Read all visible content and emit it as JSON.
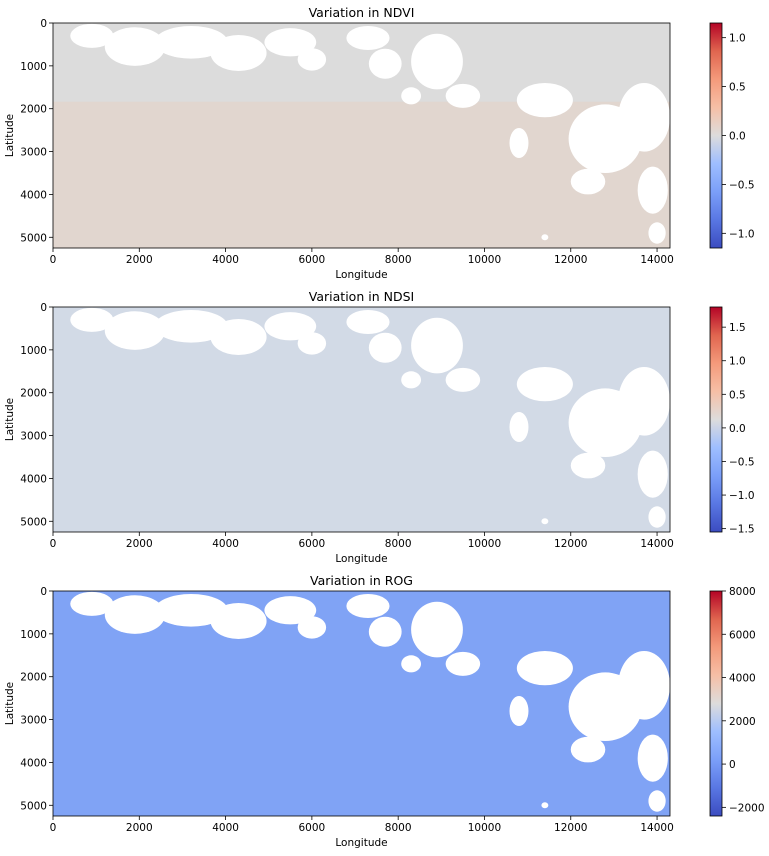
{
  "chart_data": [
    {
      "type": "heatmap",
      "title": "Variation in NDVI",
      "xlabel": "Longitude",
      "ylabel": "Latitude",
      "x_ticks": [
        0,
        2000,
        4000,
        6000,
        8000,
        10000,
        12000,
        14000
      ],
      "y_ticks": [
        0,
        1000,
        2000,
        3000,
        4000,
        5000
      ],
      "x_range": [
        0,
        14300
      ],
      "y_range": [
        0,
        5250
      ],
      "colorbar": {
        "colormap": "coolwarm",
        "range": [
          -1.15,
          1.15
        ],
        "ticks": [
          -1.0,
          -0.5,
          0.0,
          0.5,
          1.0
        ],
        "tick_labels": [
          "−1.0",
          "−0.5",
          "0.0",
          "0.5",
          "1.0"
        ]
      },
      "dominant_color": "#dcdcdc",
      "tint_color": "#e6d2c4",
      "masked_color": "#ffffff"
    },
    {
      "type": "heatmap",
      "title": "Variation in NDSI",
      "xlabel": "Longitude",
      "ylabel": "Latitude",
      "x_ticks": [
        0,
        2000,
        4000,
        6000,
        8000,
        10000,
        12000,
        14000
      ],
      "y_ticks": [
        0,
        1000,
        2000,
        3000,
        4000,
        5000
      ],
      "x_range": [
        0,
        14300
      ],
      "y_range": [
        0,
        5250
      ],
      "colorbar": {
        "colormap": "coolwarm",
        "range": [
          -1.55,
          1.8
        ],
        "ticks": [
          -1.5,
          -1.0,
          -0.5,
          0.0,
          0.5,
          1.0,
          1.5
        ],
        "tick_labels": [
          "−1.5",
          "−1.0",
          "−0.5",
          "0.0",
          "0.5",
          "1.0",
          "1.5"
        ]
      },
      "dominant_color": "#d2dae6",
      "tint_color": "#d2dae6",
      "masked_color": "#ffffff"
    },
    {
      "type": "heatmap",
      "title": "Variation in ROG",
      "xlabel": "Longitude",
      "ylabel": "Latitude",
      "x_ticks": [
        0,
        2000,
        4000,
        6000,
        8000,
        10000,
        12000,
        14000
      ],
      "y_ticks": [
        0,
        1000,
        2000,
        3000,
        4000,
        5000
      ],
      "x_range": [
        0,
        14300
      ],
      "y_range": [
        0,
        5250
      ],
      "colorbar": {
        "colormap": "coolwarm",
        "range": [
          -2400,
          8000
        ],
        "ticks": [
          -2000,
          0,
          2000,
          4000,
          6000,
          8000
        ],
        "tick_labels": [
          "−2000",
          "0",
          "2000",
          "4000",
          "6000",
          "8000"
        ]
      },
      "dominant_color": "#80a3f5",
      "tint_color": "#80a3f5",
      "masked_color": "#ffffff"
    }
  ]
}
